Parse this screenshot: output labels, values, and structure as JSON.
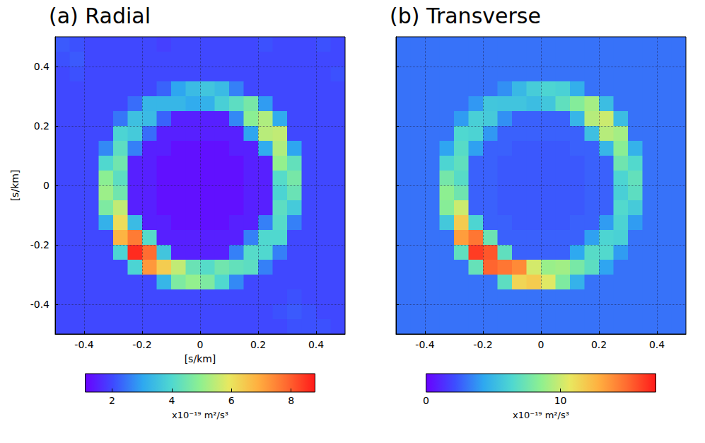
{
  "chart_data": [
    {
      "type": "heatmap",
      "title": "(a) Radial",
      "x_label": "[s/km]",
      "y_label": "[s/km]",
      "xlim": [
        -0.5,
        0.5
      ],
      "ylim": [
        -0.5,
        0.5
      ],
      "xticks": [
        -0.4,
        -0.2,
        0,
        0.2,
        0.4
      ],
      "yticks": [
        -0.4,
        -0.2,
        0,
        0.2,
        0.4
      ],
      "grid": true,
      "x": [
        -0.475,
        -0.425,
        -0.375,
        -0.325,
        -0.275,
        -0.225,
        -0.175,
        -0.125,
        -0.075,
        -0.025,
        0.025,
        0.075,
        0.125,
        0.175,
        0.225,
        0.275,
        0.325,
        0.375,
        0.425,
        0.475
      ],
      "y": [
        0.475,
        0.425,
        0.375,
        0.325,
        0.275,
        0.225,
        0.175,
        0.125,
        0.075,
        0.025,
        -0.025,
        -0.075,
        -0.125,
        -0.175,
        -0.225,
        -0.275,
        -0.325,
        -0.375,
        -0.425,
        -0.475
      ],
      "z": [
        [
          2.2,
          2.1,
          2.0,
          2.0,
          2.0,
          2.0,
          2.0,
          1.9,
          2.0,
          2.0,
          2.0,
          2.0,
          2.0,
          2.0,
          2.1,
          2.0,
          2.0,
          2.0,
          2.1,
          2.0
        ],
        [
          2.1,
          2.2,
          2.0,
          2.0,
          2.0,
          2.0,
          2.0,
          2.0,
          2.0,
          2.0,
          2.0,
          2.0,
          2.0,
          2.0,
          2.0,
          2.0,
          2.0,
          2.0,
          2.0,
          2.0
        ],
        [
          2.0,
          2.1,
          2.0,
          2.0,
          2.0,
          2.0,
          2.0,
          2.0,
          2.0,
          2.0,
          2.0,
          2.0,
          2.0,
          2.0,
          2.0,
          2.0,
          2.0,
          2.0,
          2.0,
          2.1
        ],
        [
          2.0,
          2.0,
          2.0,
          2.0,
          2.0,
          2.0,
          2.0,
          2.3,
          3.0,
          3.4,
          3.6,
          3.4,
          2.6,
          2.0,
          2.0,
          2.0,
          2.0,
          2.0,
          2.0,
          2.0
        ],
        [
          2.0,
          2.0,
          2.0,
          2.0,
          2.0,
          2.4,
          3.3,
          3.3,
          3.3,
          3.1,
          3.2,
          3.8,
          4.2,
          4.6,
          2.9,
          2.0,
          2.0,
          2.0,
          2.0,
          2.0
        ],
        [
          2.0,
          2.0,
          2.0,
          2.0,
          2.5,
          3.5,
          3.4,
          2.3,
          1.5,
          1.5,
          1.5,
          1.5,
          2.7,
          4.9,
          5.3,
          3.1,
          2.0,
          2.0,
          2.0,
          2.0
        ],
        [
          2.0,
          2.0,
          2.0,
          2.0,
          3.9,
          3.7,
          2.4,
          1.5,
          1.5,
          1.5,
          1.5,
          1.5,
          1.5,
          3.0,
          5.4,
          5.5,
          2.0,
          2.0,
          2.0,
          2.0
        ],
        [
          2.0,
          2.0,
          2.0,
          2.7,
          4.2,
          2.6,
          1.5,
          1.5,
          1.3,
          1.3,
          1.3,
          1.3,
          1.5,
          1.5,
          3.1,
          5.3,
          3.0,
          2.0,
          2.0,
          2.0
        ],
        [
          2.0,
          2.0,
          2.0,
          4.0,
          4.5,
          1.5,
          1.5,
          1.3,
          1.3,
          1.3,
          1.3,
          1.3,
          1.3,
          1.5,
          1.5,
          5.0,
          4.3,
          2.0,
          2.0,
          2.0
        ],
        [
          2.0,
          2.0,
          2.0,
          4.9,
          4.2,
          1.5,
          1.5,
          1.3,
          1.3,
          1.3,
          1.3,
          1.3,
          1.3,
          1.5,
          1.5,
          4.1,
          4.6,
          2.0,
          2.0,
          2.0
        ],
        [
          2.0,
          2.0,
          2.0,
          5.1,
          4.5,
          1.5,
          1.5,
          1.3,
          1.3,
          1.3,
          1.3,
          1.3,
          1.3,
          1.5,
          1.5,
          3.9,
          4.4,
          2.0,
          2.0,
          2.0
        ],
        [
          2.0,
          2.0,
          2.0,
          4.7,
          5.5,
          1.5,
          1.5,
          1.3,
          1.3,
          1.3,
          1.3,
          1.3,
          1.3,
          1.5,
          1.5,
          4.2,
          3.7,
          2.0,
          2.0,
          2.0
        ],
        [
          2.0,
          2.0,
          2.0,
          3.2,
          6.1,
          3.4,
          1.5,
          1.5,
          1.3,
          1.3,
          1.3,
          1.3,
          1.5,
          1.5,
          2.6,
          4.1,
          2.6,
          2.0,
          2.0,
          2.0
        ],
        [
          2.0,
          2.0,
          2.0,
          2.0,
          6.8,
          7.6,
          4.1,
          1.5,
          1.5,
          1.5,
          1.5,
          1.5,
          1.5,
          2.6,
          4.0,
          4.0,
          2.0,
          2.0,
          2.0,
          2.0
        ],
        [
          2.0,
          2.0,
          2.0,
          2.0,
          3.9,
          8.6,
          7.8,
          3.6,
          1.5,
          1.5,
          1.5,
          1.5,
          2.6,
          4.1,
          4.0,
          2.6,
          2.0,
          2.0,
          2.0,
          2.0
        ],
        [
          2.0,
          2.0,
          2.0,
          2.0,
          2.0,
          3.9,
          7.2,
          6.4,
          5.5,
          4.4,
          4.1,
          4.5,
          4.3,
          4.2,
          2.6,
          2.0,
          2.0,
          2.0,
          2.0,
          2.0
        ],
        [
          2.0,
          2.0,
          2.0,
          2.0,
          2.0,
          2.0,
          2.0,
          3.3,
          4.7,
          5.0,
          4.7,
          4.0,
          2.7,
          2.0,
          2.0,
          2.0,
          2.0,
          2.0,
          2.0,
          2.0
        ],
        [
          2.0,
          2.0,
          2.0,
          2.0,
          2.0,
          2.0,
          2.0,
          2.0,
          2.0,
          2.0,
          2.0,
          2.0,
          2.0,
          2.0,
          2.0,
          2.0,
          2.1,
          2.0,
          2.0,
          2.0
        ],
        [
          2.0,
          2.0,
          2.0,
          2.0,
          2.0,
          2.0,
          2.0,
          2.0,
          2.0,
          2.0,
          2.0,
          2.0,
          2.0,
          2.0,
          2.0,
          2.1,
          2.2,
          2.1,
          2.0,
          2.0
        ],
        [
          2.0,
          2.0,
          2.0,
          2.0,
          2.0,
          2.0,
          2.0,
          2.0,
          2.0,
          2.0,
          2.0,
          2.0,
          2.0,
          2.0,
          2.0,
          2.0,
          2.1,
          2.1,
          2.1,
          2.0
        ]
      ],
      "colorbar": {
        "range": [
          1.1,
          8.8
        ],
        "ticks": [
          2,
          4,
          6,
          8
        ],
        "label": "x10⁻¹⁹ m²/s³"
      }
    },
    {
      "type": "heatmap",
      "title": "(b) Transverse",
      "tick_labels": "x",
      "xlim": [
        -0.5,
        0.5
      ],
      "ylim": [
        -0.5,
        0.5
      ],
      "xticks": [
        -0.4,
        -0.2,
        0,
        0.2,
        0.4
      ],
      "yticks": [
        -0.4,
        -0.2,
        0,
        0.2,
        0.4
      ],
      "grid": true,
      "x": [
        -0.475,
        -0.425,
        -0.375,
        -0.325,
        -0.275,
        -0.225,
        -0.175,
        -0.125,
        -0.075,
        -0.025,
        0.025,
        0.075,
        0.125,
        0.175,
        0.225,
        0.275,
        0.325,
        0.375,
        0.425,
        0.475
      ],
      "y": [
        0.475,
        0.425,
        0.375,
        0.325,
        0.275,
        0.225,
        0.175,
        0.125,
        0.075,
        0.025,
        -0.025,
        -0.075,
        -0.125,
        -0.175,
        -0.225,
        -0.275,
        -0.325,
        -0.375,
        -0.425,
        -0.475
      ],
      "z": [
        [
          3.0,
          3.0,
          3.0,
          3.0,
          3.0,
          3.0,
          3.0,
          3.0,
          3.0,
          3.0,
          3.0,
          3.0,
          3.0,
          3.0,
          3.0,
          3.0,
          3.0,
          3.0,
          3.0,
          3.0
        ],
        [
          3.0,
          3.0,
          3.0,
          3.0,
          3.0,
          3.0,
          3.0,
          3.0,
          3.0,
          3.0,
          3.0,
          3.0,
          3.0,
          3.0,
          3.0,
          3.0,
          3.0,
          3.0,
          3.0,
          3.0
        ],
        [
          3.0,
          3.0,
          3.0,
          3.0,
          3.0,
          3.0,
          3.0,
          3.0,
          3.0,
          3.0,
          3.0,
          3.0,
          3.0,
          3.0,
          3.0,
          3.0,
          3.0,
          3.0,
          3.0,
          3.0
        ],
        [
          3.0,
          3.0,
          3.0,
          3.0,
          3.0,
          3.0,
          3.0,
          3.7,
          5.0,
          5.9,
          6.3,
          6.1,
          4.6,
          3.0,
          3.0,
          3.0,
          3.0,
          3.0,
          3.0,
          3.0
        ],
        [
          3.0,
          3.0,
          3.0,
          3.0,
          3.0,
          3.9,
          5.6,
          5.5,
          5.5,
          5.2,
          5.6,
          7.0,
          8.2,
          9.1,
          5.2,
          3.0,
          3.0,
          3.0,
          3.0,
          3.0
        ],
        [
          3.0,
          3.0,
          3.0,
          3.0,
          4.0,
          6.0,
          5.8,
          3.7,
          2.6,
          2.6,
          2.6,
          2.6,
          4.9,
          9.5,
          10.0,
          5.2,
          3.0,
          3.0,
          3.0,
          3.0
        ],
        [
          3.0,
          3.0,
          3.0,
          3.0,
          6.4,
          6.2,
          3.9,
          2.6,
          2.6,
          2.6,
          2.6,
          2.6,
          2.6,
          5.3,
          9.5,
          9.1,
          3.0,
          3.0,
          3.0,
          3.0
        ],
        [
          3.0,
          3.0,
          3.0,
          4.2,
          6.7,
          4.1,
          2.6,
          2.6,
          2.4,
          2.4,
          2.4,
          2.4,
          2.6,
          2.6,
          4.9,
          8.4,
          4.7,
          3.0,
          3.0,
          3.0
        ],
        [
          3.0,
          3.0,
          3.0,
          6.3,
          7.0,
          2.6,
          2.6,
          2.4,
          2.4,
          2.4,
          2.4,
          2.4,
          2.4,
          2.6,
          2.6,
          7.5,
          6.5,
          3.0,
          3.0,
          3.0
        ],
        [
          3.0,
          3.0,
          3.0,
          7.7,
          6.7,
          2.6,
          2.6,
          2.4,
          2.4,
          2.4,
          2.4,
          2.4,
          2.4,
          2.6,
          2.6,
          6.3,
          7.1,
          3.0,
          3.0,
          3.0
        ],
        [
          3.0,
          3.0,
          3.0,
          8.5,
          7.5,
          2.6,
          2.6,
          2.4,
          2.4,
          2.4,
          2.4,
          2.4,
          2.4,
          2.6,
          2.6,
          6.0,
          6.9,
          3.0,
          3.0,
          3.0
        ],
        [
          3.0,
          3.0,
          3.0,
          8.3,
          10.0,
          2.6,
          2.6,
          2.4,
          2.4,
          2.4,
          2.4,
          2.4,
          2.4,
          2.6,
          2.6,
          6.5,
          5.8,
          3.0,
          3.0,
          3.0
        ],
        [
          3.0,
          3.0,
          3.0,
          5.7,
          11.8,
          6.3,
          2.6,
          2.6,
          2.4,
          2.4,
          2.4,
          2.4,
          2.6,
          2.6,
          4.0,
          6.2,
          4.0,
          3.0,
          3.0,
          3.0
        ],
        [
          3.0,
          3.0,
          3.0,
          3.0,
          13.4,
          14.6,
          7.4,
          2.6,
          2.6,
          2.6,
          2.6,
          2.6,
          2.6,
          4.1,
          6.3,
          6.1,
          3.0,
          3.0,
          3.0,
          3.0
        ],
        [
          3.0,
          3.0,
          3.0,
          3.0,
          7.0,
          16.2,
          15.5,
          7.0,
          2.6,
          2.6,
          2.6,
          2.6,
          4.3,
          6.7,
          6.5,
          4.0,
          3.0,
          3.0,
          3.0,
          3.0
        ],
        [
          3.0,
          3.0,
          3.0,
          3.0,
          3.0,
          7.2,
          15.1,
          14.6,
          14.0,
          10.2,
          8.8,
          9.0,
          7.8,
          6.9,
          4.2,
          3.0,
          3.0,
          3.0,
          3.0,
          3.0
        ],
        [
          3.0,
          3.0,
          3.0,
          3.0,
          3.0,
          3.0,
          3.0,
          6.9,
          11.4,
          11.8,
          10.5,
          8.0,
          4.7,
          3.0,
          3.0,
          3.0,
          3.0,
          3.0,
          3.0,
          3.0
        ],
        [
          3.0,
          3.0,
          3.0,
          3.0,
          3.0,
          3.0,
          3.0,
          3.0,
          3.0,
          3.0,
          3.0,
          3.0,
          3.0,
          3.0,
          3.0,
          3.0,
          3.0,
          3.0,
          3.0,
          3.0
        ],
        [
          3.0,
          3.0,
          3.0,
          3.0,
          3.0,
          3.0,
          3.0,
          3.0,
          3.0,
          3.0,
          3.0,
          3.0,
          3.0,
          3.0,
          3.0,
          3.0,
          3.0,
          3.0,
          3.0,
          3.0
        ],
        [
          3.0,
          3.0,
          3.0,
          3.0,
          3.0,
          3.0,
          3.0,
          3.0,
          3.0,
          3.0,
          3.0,
          3.0,
          3.0,
          3.0,
          3.0,
          3.0,
          3.0,
          3.0,
          3.0,
          3.0
        ]
      ],
      "colorbar": {
        "range": [
          0,
          17.1
        ],
        "ticks": [
          0,
          10
        ],
        "label": "x10⁻¹⁹ m²/s³"
      }
    }
  ]
}
